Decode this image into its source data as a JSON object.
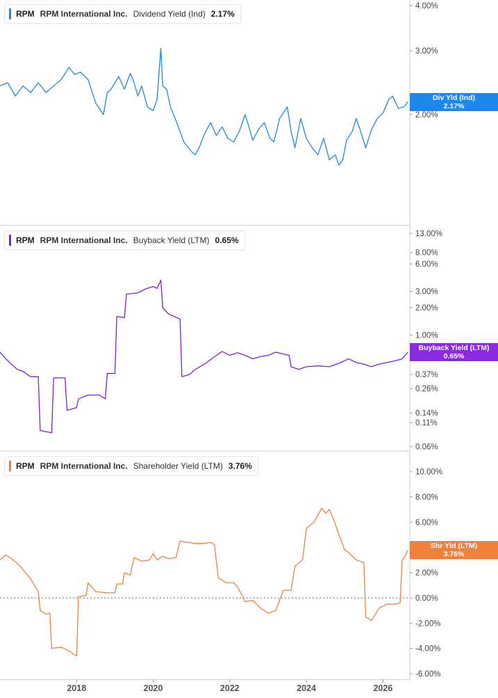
{
  "legends": [
    {
      "ticker": "RPM",
      "company": "RPM International Inc.",
      "metric": "Dividend Yield (Ind)",
      "value": "2.17%",
      "color": "#1e88e5"
    },
    {
      "ticker": "RPM",
      "company": "RPM International Inc.",
      "metric": "Buyback Yield (LTM)",
      "value": "0.65%",
      "color": "#7b1fe0"
    },
    {
      "ticker": "RPM",
      "company": "RPM International Inc.",
      "metric": "Shareholder Yield (LTM)",
      "value": "3.76%",
      "color": "#f0803c"
    }
  ],
  "end_labels": [
    {
      "name": "Div Yld (Ind)",
      "value": "2.17%",
      "color": "#1e88f0"
    },
    {
      "name": "Buyback Yield (LTM)",
      "value": "0.65%",
      "color": "#8a2be2"
    },
    {
      "name": "Shr Yld (LTM)",
      "value": "3.76%",
      "color": "#f0803c"
    }
  ],
  "chart_data": [
    {
      "type": "line",
      "series": [
        {
          "name": "Dividend Yield (Ind)",
          "color": "#1e88e5",
          "points": [
            [
              "2016.00",
              2.4
            ],
            [
              "2016.20",
              2.45
            ],
            [
              "2016.40",
              2.25
            ],
            [
              "2016.60",
              2.4
            ],
            [
              "2016.80",
              2.3
            ],
            [
              "2017.00",
              2.45
            ],
            [
              "2017.20",
              2.3
            ],
            [
              "2017.40",
              2.4
            ],
            [
              "2017.60",
              2.5
            ],
            [
              "2017.80",
              2.7
            ],
            [
              "2017.95",
              2.58
            ],
            [
              "2018.10",
              2.62
            ],
            [
              "2018.30",
              2.5
            ],
            [
              "2018.50",
              2.15
            ],
            [
              "2018.70",
              2.0
            ],
            [
              "2018.80",
              2.3
            ],
            [
              "2018.90",
              2.35
            ],
            [
              "2019.10",
              2.55
            ],
            [
              "2019.25",
              2.35
            ],
            [
              "2019.40",
              2.6
            ],
            [
              "2019.50",
              2.45
            ],
            [
              "2019.60",
              2.25
            ],
            [
              "2019.70",
              2.4
            ],
            [
              "2019.85",
              2.1
            ],
            [
              "2020.00",
              2.05
            ],
            [
              "2020.10",
              2.2
            ],
            [
              "2020.20",
              3.05
            ],
            [
              "2020.25",
              2.4
            ],
            [
              "2020.35",
              2.35
            ],
            [
              "2020.45",
              2.1
            ],
            [
              "2020.60",
              1.92
            ],
            [
              "2020.80",
              1.68
            ],
            [
              "2021.00",
              1.58
            ],
            [
              "2021.10",
              1.55
            ],
            [
              "2021.20",
              1.62
            ],
            [
              "2021.35",
              1.78
            ],
            [
              "2021.50",
              1.9
            ],
            [
              "2021.65",
              1.75
            ],
            [
              "2021.80",
              1.85
            ],
            [
              "2021.95",
              1.72
            ],
            [
              "2022.10",
              1.68
            ],
            [
              "2022.25",
              1.8
            ],
            [
              "2022.40",
              2.0
            ],
            [
              "2022.50",
              1.85
            ],
            [
              "2022.60",
              1.7
            ],
            [
              "2022.75",
              1.82
            ],
            [
              "2022.90",
              1.9
            ],
            [
              "2023.05",
              1.72
            ],
            [
              "2023.15",
              1.68
            ],
            [
              "2023.30",
              1.95
            ],
            [
              "2023.50",
              2.1
            ],
            [
              "2023.60",
              1.8
            ],
            [
              "2023.70",
              1.62
            ],
            [
              "2023.85",
              1.95
            ],
            [
              "2024.00",
              1.72
            ],
            [
              "2024.15",
              1.62
            ],
            [
              "2024.30",
              1.55
            ],
            [
              "2024.45",
              1.72
            ],
            [
              "2024.60",
              1.5
            ],
            [
              "2024.75",
              1.55
            ],
            [
              "2024.85",
              1.45
            ],
            [
              "2024.95",
              1.5
            ],
            [
              "2025.05",
              1.7
            ],
            [
              "2025.20",
              1.8
            ],
            [
              "2025.30",
              1.95
            ],
            [
              "2025.40",
              1.82
            ],
            [
              "2025.55",
              1.62
            ],
            [
              "2025.70",
              1.82
            ],
            [
              "2025.85",
              1.95
            ],
            [
              "2026.00",
              2.02
            ],
            [
              "2026.15",
              2.2
            ],
            [
              "2026.25",
              2.25
            ],
            [
              "2026.40",
              2.08
            ],
            [
              "2026.55",
              2.1
            ],
            [
              "2026.65",
              2.17
            ]
          ]
        }
      ],
      "y_scale": "log",
      "ylim": [
        1.0,
        4.0
      ],
      "yticks": [
        "4.00%",
        "3.00%",
        "2.00%"
      ],
      "xlim": [
        "2016.00",
        "2026.70"
      ]
    },
    {
      "type": "line",
      "series": [
        {
          "name": "Buyback Yield (LTM)",
          "color": "#7b1fe0",
          "points": [
            [
              "2016.00",
              0.65
            ],
            [
              "2016.15",
              0.55
            ],
            [
              "2016.30",
              0.48
            ],
            [
              "2016.45",
              0.42
            ],
            [
              "2016.60",
              0.4
            ],
            [
              "2016.80",
              0.35
            ],
            [
              "2017.00",
              0.35
            ],
            [
              "2017.05",
              0.09
            ],
            [
              "2017.35",
              0.085
            ],
            [
              "2017.40",
              0.34
            ],
            [
              "2017.70",
              0.34
            ],
            [
              "2017.75",
              0.15
            ],
            [
              "2018.00",
              0.16
            ],
            [
              "2018.05",
              0.2
            ],
            [
              "2018.30",
              0.22
            ],
            [
              "2018.60",
              0.22
            ],
            [
              "2018.75",
              0.2
            ],
            [
              "2018.80",
              0.38
            ],
            [
              "2019.00",
              0.38
            ],
            [
              "2019.05",
              1.6
            ],
            [
              "2019.25",
              1.55
            ],
            [
              "2019.30",
              2.8
            ],
            [
              "2019.60",
              2.9
            ],
            [
              "2019.80",
              3.2
            ],
            [
              "2020.00",
              3.4
            ],
            [
              "2020.10",
              3.25
            ],
            [
              "2020.20",
              4.0
            ],
            [
              "2020.25",
              2.0
            ],
            [
              "2020.40",
              1.7
            ],
            [
              "2020.55",
              1.6
            ],
            [
              "2020.70",
              1.5
            ],
            [
              "2020.75",
              0.35
            ],
            [
              "2020.95",
              0.37
            ],
            [
              "2021.10",
              0.42
            ],
            [
              "2021.40",
              0.5
            ],
            [
              "2021.60",
              0.58
            ],
            [
              "2021.80",
              0.66
            ],
            [
              "2022.00",
              0.6
            ],
            [
              "2022.20",
              0.64
            ],
            [
              "2022.40",
              0.6
            ],
            [
              "2022.60",
              0.55
            ],
            [
              "2022.80",
              0.58
            ],
            [
              "2023.00",
              0.6
            ],
            [
              "2023.20",
              0.65
            ],
            [
              "2023.40",
              0.62
            ],
            [
              "2023.55",
              0.6
            ],
            [
              "2023.60",
              0.45
            ],
            [
              "2023.80",
              0.42
            ],
            [
              "2024.00",
              0.45
            ],
            [
              "2024.30",
              0.46
            ],
            [
              "2024.60",
              0.45
            ],
            [
              "2024.90",
              0.5
            ],
            [
              "2025.10",
              0.55
            ],
            [
              "2025.30",
              0.5
            ],
            [
              "2025.50",
              0.48
            ],
            [
              "2025.70",
              0.45
            ],
            [
              "2025.90",
              0.48
            ],
            [
              "2026.10",
              0.5
            ],
            [
              "2026.30",
              0.52
            ],
            [
              "2026.50",
              0.55
            ],
            [
              "2026.65",
              0.65
            ]
          ]
        }
      ],
      "y_scale": "log",
      "ylim": [
        0.055,
        13.0
      ],
      "yticks": [
        "13.00%",
        "8.00%",
        "6.00%",
        "3.00%",
        "2.00%",
        "1.00%",
        "0.37%",
        "0.26%",
        "0.14%",
        "0.11%",
        "0.06%"
      ],
      "xlim": [
        "2016.00",
        "2026.70"
      ]
    },
    {
      "type": "line",
      "series": [
        {
          "name": "Shareholder Yield (LTM)",
          "color": "#f0803c",
          "points": [
            [
              "2016.00",
              3.0
            ],
            [
              "2016.15",
              3.4
            ],
            [
              "2016.30",
              3.1
            ],
            [
              "2016.50",
              2.6
            ],
            [
              "2016.80",
              1.5
            ],
            [
              "2017.00",
              0.5
            ],
            [
              "2017.05",
              -1.0
            ],
            [
              "2017.20",
              -1.3
            ],
            [
              "2017.30",
              -1.2
            ],
            [
              "2017.35",
              -4.0
            ],
            [
              "2017.60",
              -3.9
            ],
            [
              "2017.80",
              -4.2
            ],
            [
              "2018.00",
              -4.6
            ],
            [
              "2018.05",
              0.1
            ],
            [
              "2018.25",
              0.2
            ],
            [
              "2018.30",
              1.2
            ],
            [
              "2018.50",
              0.5
            ],
            [
              "2018.80",
              0.4
            ],
            [
              "2019.00",
              0.4
            ],
            [
              "2019.05",
              1.1
            ],
            [
              "2019.20",
              1.1
            ],
            [
              "2019.25",
              2.0
            ],
            [
              "2019.40",
              1.8
            ],
            [
              "2019.50",
              3.2
            ],
            [
              "2019.70",
              2.9
            ],
            [
              "2019.90",
              3.0
            ],
            [
              "2020.00",
              3.5
            ],
            [
              "2020.10",
              3.0
            ],
            [
              "2020.25",
              3.3
            ],
            [
              "2020.40",
              3.1
            ],
            [
              "2020.60",
              3.2
            ],
            [
              "2020.70",
              4.5
            ],
            [
              "2020.90",
              4.4
            ],
            [
              "2021.10",
              4.3
            ],
            [
              "2021.30",
              4.3
            ],
            [
              "2021.50",
              4.4
            ],
            [
              "2021.60",
              4.2
            ],
            [
              "2021.70",
              1.6
            ],
            [
              "2021.90",
              1.2
            ],
            [
              "2022.10",
              1.2
            ],
            [
              "2022.20",
              0.9
            ],
            [
              "2022.40",
              -0.3
            ],
            [
              "2022.60",
              -0.2
            ],
            [
              "2022.80",
              -0.8
            ],
            [
              "2023.00",
              -1.2
            ],
            [
              "2023.20",
              -1.0
            ],
            [
              "2023.40",
              0.6
            ],
            [
              "2023.60",
              0.6
            ],
            [
              "2023.70",
              2.5
            ],
            [
              "2023.90",
              3.0
            ],
            [
              "2024.00",
              5.5
            ],
            [
              "2024.20",
              6.0
            ],
            [
              "2024.40",
              7.1
            ],
            [
              "2024.50",
              6.7
            ],
            [
              "2024.60",
              7.0
            ],
            [
              "2024.70",
              6.3
            ],
            [
              "2024.85",
              5.0
            ],
            [
              "2025.00",
              3.8
            ],
            [
              "2025.10",
              3.6
            ],
            [
              "2025.30",
              3.0
            ],
            [
              "2025.50",
              2.8
            ],
            [
              "2025.55",
              -1.5
            ],
            [
              "2025.70",
              -1.8
            ],
            [
              "2025.90",
              -0.8
            ],
            [
              "2026.10",
              -0.5
            ],
            [
              "2026.30",
              -0.5
            ],
            [
              "2026.45",
              -0.4
            ],
            [
              "2026.50",
              3.0
            ],
            [
              "2026.58",
              3.3
            ],
            [
              "2026.65",
              3.76
            ]
          ]
        }
      ],
      "y_scale": "linear",
      "ylim": [
        -6.0,
        10.0
      ],
      "yticks": [
        "10.00%",
        "8.00%",
        "6.00%",
        "4.00%",
        "2.00%",
        "0.00%",
        "-2.00%",
        "-4.00%",
        "-6.00%"
      ],
      "zero_line": true,
      "xlim": [
        "2016.00",
        "2026.70"
      ]
    }
  ],
  "x_axis": {
    "tick_labels": [
      "2018",
      "2020",
      "2022",
      "2024",
      "2026"
    ]
  }
}
